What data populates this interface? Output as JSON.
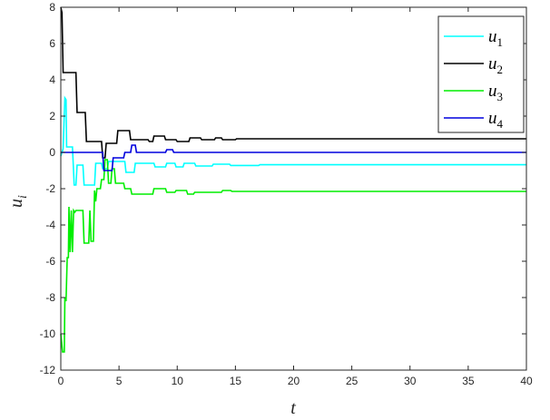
{
  "chart_data": {
    "type": "line",
    "xlabel": "t",
    "ylabel": "u",
    "ylabel_sub": "i",
    "xlim": [
      0,
      40
    ],
    "ylim": [
      -12,
      8
    ],
    "xticks": [
      0,
      5,
      10,
      15,
      20,
      25,
      30,
      35,
      40
    ],
    "yticks": [
      -12,
      -10,
      -8,
      -6,
      -4,
      -2,
      0,
      2,
      4,
      6,
      8
    ],
    "grid": false,
    "legend_position": "top-right",
    "series": [
      {
        "name": "u",
        "sub": "1",
        "color": "#00ffff",
        "points": [
          [
            0,
            -0.2
          ],
          [
            0.2,
            0.2
          ],
          [
            0.35,
            3
          ],
          [
            0.45,
            2.9
          ],
          [
            0.5,
            0.3
          ],
          [
            1,
            0.3
          ],
          [
            1.15,
            -1.8
          ],
          [
            1.3,
            -1.8
          ],
          [
            1.4,
            -0.7
          ],
          [
            1.9,
            -0.7
          ],
          [
            2,
            -1.8
          ],
          [
            2.9,
            -1.8
          ],
          [
            3,
            -0.6
          ],
          [
            3.5,
            -0.6
          ],
          [
            3.6,
            -0.9
          ],
          [
            4,
            -0.9
          ],
          [
            4.1,
            -0.5
          ],
          [
            5.5,
            -0.5
          ],
          [
            5.6,
            -1.1
          ],
          [
            6.3,
            -1.1
          ],
          [
            6.4,
            -0.6
          ],
          [
            8,
            -0.6
          ],
          [
            8.1,
            -0.8
          ],
          [
            9,
            -0.8
          ],
          [
            9.1,
            -0.6
          ],
          [
            9.8,
            -0.6
          ],
          [
            9.9,
            -0.8
          ],
          [
            10.5,
            -0.8
          ],
          [
            10.6,
            -0.6
          ],
          [
            11.5,
            -0.6
          ],
          [
            11.6,
            -0.75
          ],
          [
            13,
            -0.75
          ],
          [
            13.1,
            -0.65
          ],
          [
            14.5,
            -0.65
          ],
          [
            14.6,
            -0.72
          ],
          [
            17,
            -0.72
          ],
          [
            17.1,
            -0.68
          ],
          [
            40,
            -0.68
          ]
        ]
      },
      {
        "name": "u",
        "sub": "2",
        "color": "#000000",
        "points": [
          [
            0,
            8
          ],
          [
            0.1,
            7.7
          ],
          [
            0.2,
            4.4
          ],
          [
            1.3,
            4.4
          ],
          [
            1.4,
            2.2
          ],
          [
            2.1,
            2.2
          ],
          [
            2.2,
            0.6
          ],
          [
            3.5,
            0.6
          ],
          [
            3.6,
            -0.3
          ],
          [
            3.8,
            -0.3
          ],
          [
            3.9,
            0.5
          ],
          [
            4.8,
            0.5
          ],
          [
            4.9,
            1.2
          ],
          [
            5.9,
            1.2
          ],
          [
            6,
            0.7
          ],
          [
            7.5,
            0.7
          ],
          [
            7.6,
            0.6
          ],
          [
            7.9,
            0.6
          ],
          [
            8,
            0.9
          ],
          [
            8.9,
            0.9
          ],
          [
            9,
            0.7
          ],
          [
            9.9,
            0.7
          ],
          [
            10,
            0.6
          ],
          [
            11,
            0.6
          ],
          [
            11.1,
            0.8
          ],
          [
            12,
            0.8
          ],
          [
            12.1,
            0.7
          ],
          [
            13.2,
            0.7
          ],
          [
            13.3,
            0.8
          ],
          [
            13.8,
            0.8
          ],
          [
            13.9,
            0.7
          ],
          [
            15,
            0.7
          ],
          [
            15.1,
            0.75
          ],
          [
            40,
            0.75
          ]
        ]
      },
      {
        "name": "u",
        "sub": "3",
        "color": "#00ee00",
        "points": [
          [
            0,
            -10
          ],
          [
            0.15,
            -11
          ],
          [
            0.3,
            -11
          ],
          [
            0.35,
            -8
          ],
          [
            0.45,
            -8.2
          ],
          [
            0.55,
            -5.8
          ],
          [
            0.65,
            -5.8
          ],
          [
            0.7,
            -3
          ],
          [
            0.8,
            -5.5
          ],
          [
            0.9,
            -3.2
          ],
          [
            1,
            -5.5
          ],
          [
            1.1,
            -3.2
          ],
          [
            1.2,
            -3.3
          ],
          [
            1.3,
            -3.2
          ],
          [
            1.9,
            -3.2
          ],
          [
            2,
            -5
          ],
          [
            2.4,
            -5
          ],
          [
            2.5,
            -3.2
          ],
          [
            2.6,
            -4.9
          ],
          [
            2.8,
            -4.9
          ],
          [
            2.9,
            -2.1
          ],
          [
            3,
            -2.7
          ],
          [
            3.1,
            -2
          ],
          [
            3.4,
            -2
          ],
          [
            3.5,
            -1.5
          ],
          [
            3.7,
            -1.5
          ],
          [
            3.8,
            -0.4
          ],
          [
            4,
            -0.4
          ],
          [
            4.1,
            -1.7
          ],
          [
            4.3,
            -1.7
          ],
          [
            4.4,
            -0.9
          ],
          [
            4.6,
            -0.9
          ],
          [
            4.7,
            -1.7
          ],
          [
            5.4,
            -1.7
          ],
          [
            5.5,
            -2
          ],
          [
            6,
            -2
          ],
          [
            6.1,
            -2.3
          ],
          [
            7.9,
            -2.3
          ],
          [
            8,
            -2
          ],
          [
            9,
            -2
          ],
          [
            9.1,
            -2.2
          ],
          [
            9.8,
            -2.2
          ],
          [
            9.9,
            -2.1
          ],
          [
            10.8,
            -2.1
          ],
          [
            10.9,
            -2.3
          ],
          [
            11.4,
            -2.3
          ],
          [
            11.5,
            -2.2
          ],
          [
            13.8,
            -2.2
          ],
          [
            13.9,
            -2.1
          ],
          [
            14.6,
            -2.1
          ],
          [
            14.7,
            -2.15
          ],
          [
            40,
            -2.15
          ]
        ]
      },
      {
        "name": "u",
        "sub": "4",
        "color": "#0000dd",
        "points": [
          [
            0,
            0
          ],
          [
            3.6,
            0
          ],
          [
            3.7,
            -1
          ],
          [
            4.4,
            -1
          ],
          [
            4.5,
            -0.3
          ],
          [
            5.4,
            -0.3
          ],
          [
            5.5,
            0
          ],
          [
            6,
            0
          ],
          [
            6.1,
            0.4
          ],
          [
            6.4,
            0.4
          ],
          [
            6.5,
            0
          ],
          [
            9,
            0
          ],
          [
            9.1,
            0.15
          ],
          [
            9.6,
            0.15
          ],
          [
            9.7,
            0
          ],
          [
            40,
            0
          ]
        ]
      }
    ]
  }
}
